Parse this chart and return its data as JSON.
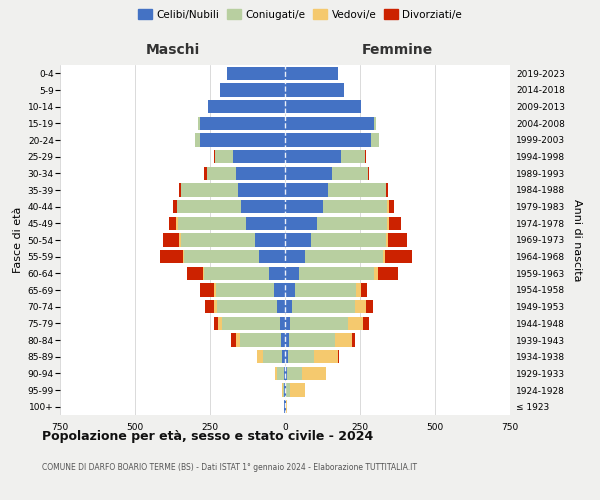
{
  "age_groups": [
    "100+",
    "95-99",
    "90-94",
    "85-89",
    "80-84",
    "75-79",
    "70-74",
    "65-69",
    "60-64",
    "55-59",
    "50-54",
    "45-49",
    "40-44",
    "35-39",
    "30-34",
    "25-29",
    "20-24",
    "15-19",
    "10-14",
    "5-9",
    "0-4"
  ],
  "birth_years": [
    "≤ 1923",
    "1924-1928",
    "1929-1933",
    "1934-1938",
    "1939-1943",
    "1944-1948",
    "1949-1953",
    "1954-1958",
    "1959-1963",
    "1964-1968",
    "1969-1973",
    "1974-1978",
    "1979-1983",
    "1984-1988",
    "1989-1993",
    "1994-1998",
    "1999-2003",
    "2004-2008",
    "2009-2013",
    "2014-2018",
    "2019-2023"
  ],
  "colors": {
    "celibi": "#4472c4",
    "coniugati": "#b8cfa0",
    "vedovi": "#f5c96e",
    "divorziati": "#cc2200"
  },
  "maschi": {
    "celibi": [
      2,
      3,
      5,
      10,
      12,
      18,
      28,
      38,
      52,
      88,
      100,
      130,
      148,
      158,
      163,
      175,
      285,
      285,
      258,
      218,
      192
    ],
    "coniugati": [
      0,
      4,
      22,
      62,
      138,
      192,
      198,
      192,
      218,
      248,
      248,
      228,
      213,
      188,
      98,
      58,
      14,
      4,
      0,
      0,
      0
    ],
    "vedovi": [
      0,
      2,
      8,
      22,
      12,
      12,
      12,
      8,
      4,
      4,
      4,
      4,
      0,
      0,
      0,
      0,
      0,
      0,
      0,
      0,
      0
    ],
    "divorziati": [
      0,
      0,
      0,
      0,
      18,
      14,
      28,
      44,
      54,
      78,
      54,
      24,
      14,
      8,
      8,
      4,
      0,
      0,
      0,
      0,
      0
    ]
  },
  "femmine": {
    "celibi": [
      2,
      4,
      7,
      10,
      14,
      17,
      24,
      34,
      48,
      68,
      88,
      108,
      128,
      143,
      158,
      188,
      288,
      298,
      253,
      198,
      178
    ],
    "coniugati": [
      0,
      12,
      48,
      88,
      152,
      192,
      208,
      202,
      248,
      258,
      248,
      233,
      213,
      193,
      118,
      78,
      24,
      4,
      0,
      0,
      0
    ],
    "vedovi": [
      4,
      52,
      82,
      78,
      58,
      52,
      38,
      18,
      14,
      8,
      8,
      4,
      4,
      0,
      0,
      0,
      0,
      0,
      0,
      0,
      0
    ],
    "divorziati": [
      0,
      0,
      0,
      4,
      8,
      18,
      24,
      18,
      68,
      88,
      63,
      43,
      18,
      8,
      4,
      4,
      0,
      0,
      0,
      0,
      0
    ]
  },
  "xlim": 750,
  "title": "Popolazione per età, sesso e stato civile - 2024",
  "subtitle": "COMUNE DI DARFO BOARIO TERME (BS) - Dati ISTAT 1° gennaio 2024 - Elaborazione TUTTITALIA.IT",
  "xlabel_left": "Maschi",
  "xlabel_right": "Femmine",
  "ylabel": "Fasce di età",
  "ylabel_right": "Anni di nascita",
  "legend_labels": [
    "Celibi/Nubili",
    "Coniugati/e",
    "Vedovi/e",
    "Divorziati/e"
  ],
  "bg_color": "#f0f0ee",
  "plot_bg": "#ffffff",
  "xticks": [
    -750,
    -500,
    -250,
    0,
    250,
    500,
    750
  ]
}
